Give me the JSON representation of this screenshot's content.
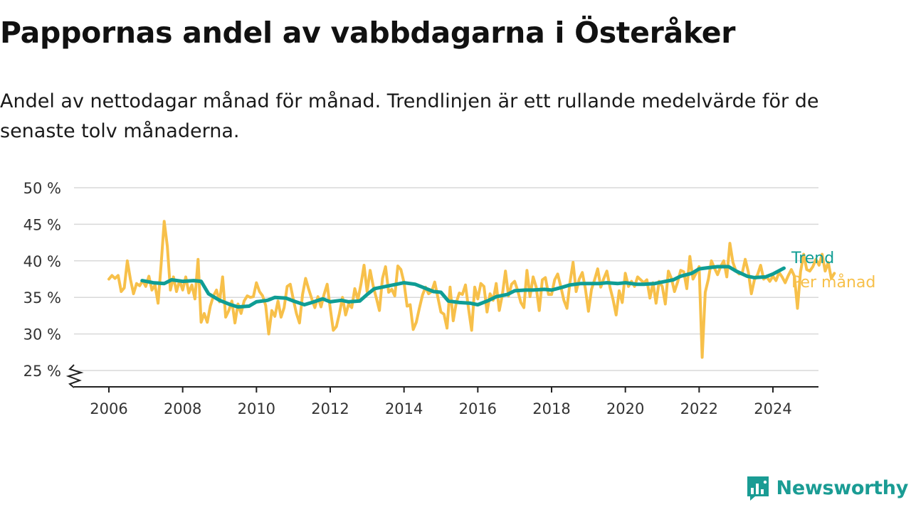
{
  "header": {
    "title": "Pappornas andel av vabbdagarna i Österåker",
    "subtitle": "Andel av nettodagar månad för månad. Trendlinjen är ett rullande medelvärde för de senaste tolv månaderna."
  },
  "legend": {
    "trend": "Trend",
    "monthly": "Per månad"
  },
  "brand": {
    "name": "Newsworthy"
  },
  "colors": {
    "trend": "#0f9d94",
    "monthly": "#f7c04a",
    "grid": "#d9d9d9",
    "axis": "#222222",
    "brand": "#1a9c94"
  },
  "chart_data": {
    "type": "line",
    "title": "Pappornas andel av vabbdagarna i Österåker",
    "xlabel": "",
    "ylabel": "",
    "xlim": [
      2005.1,
      2025.3
    ],
    "ylim": [
      25,
      50
    ],
    "axis_break": "y",
    "grid": true,
    "legend_placement": "right, at line ends",
    "x_ticks": [
      2006,
      2008,
      2010,
      2012,
      2014,
      2016,
      2018,
      2020,
      2022,
      2024
    ],
    "y_ticks": [
      25,
      30,
      35,
      40,
      45,
      50
    ],
    "y_tick_labels": [
      "25 %",
      "30 %",
      "35 %",
      "40 %",
      "45 %",
      "50 %"
    ],
    "series": [
      {
        "name": "Per månad",
        "x_start": 2006.0,
        "step": 0.08333,
        "values": [
          37.5,
          38,
          37.6,
          38,
          35.8,
          36.3,
          40,
          37.5,
          35.5,
          36.9,
          36.6,
          37.3,
          36.5,
          37.9,
          36,
          36.7,
          34.2,
          39.5,
          45.4,
          42,
          36,
          37.8,
          35.8,
          37.3,
          36,
          37.8,
          35.6,
          36.7,
          34.8,
          40.2,
          31.6,
          32.8,
          31.6,
          33.8,
          35.2,
          36,
          34.4,
          37.8,
          32.3,
          33.2,
          34.5,
          31.5,
          34.1,
          32.8,
          34.5,
          35.2,
          35,
          35.1,
          37,
          35.8,
          35.2,
          33.9,
          30,
          33.2,
          32.4,
          34.5,
          32.3,
          33.6,
          36.5,
          36.8,
          34.7,
          32.8,
          31.5,
          35.4,
          37.6,
          36.1,
          34.8,
          33.6,
          35.1,
          33.7,
          35.4,
          36.8,
          33.5,
          30.5,
          31,
          32.8,
          35,
          32.6,
          34.1,
          33.6,
          36.2,
          34.7,
          36.8,
          39.4,
          35.8,
          38.7,
          36.5,
          34.9,
          33.2,
          37.6,
          39.2,
          35.7,
          36.1,
          35.2,
          39.3,
          38.8,
          37,
          33.8,
          34,
          30.6,
          31.6,
          33.5,
          35.3,
          36.4,
          35.5,
          35.8,
          37.1,
          35,
          33,
          32.7,
          30.8,
          36.4,
          31.8,
          34.3,
          35.6,
          35.4,
          36.7,
          33.4,
          30.5,
          36.4,
          34.8,
          36.9,
          36.5,
          33,
          35.5,
          34.6,
          36.9,
          33.2,
          35.4,
          38.6,
          35.2,
          36.8,
          37.2,
          35.9,
          34.3,
          33.6,
          38.7,
          35.1,
          37.8,
          36.4,
          33.2,
          37.4,
          37.7,
          35.4,
          35.4,
          37.4,
          38.2,
          36.5,
          34.6,
          33.5,
          37.1,
          39.8,
          35.8,
          37.5,
          38.4,
          36.2,
          33.1,
          36.1,
          37.4,
          38.9,
          36.4,
          37.6,
          38.6,
          36.4,
          34.7,
          32.6,
          35.9,
          34.3,
          38.3,
          36.5,
          37.2,
          36.5,
          37.8,
          37.4,
          37,
          37.4,
          34.9,
          37,
          34.2,
          37.2,
          36.5,
          34.1,
          38.6,
          37.6,
          35.8,
          37.1,
          38.7,
          38.5,
          36.2,
          40.6,
          37.5,
          38.3,
          39.2,
          26.8,
          35.7,
          37.5,
          40,
          39,
          38.1,
          39.2,
          40,
          37.8,
          42.4,
          39.8,
          38.6,
          38.2,
          38.3,
          40.2,
          38.5,
          35.5,
          37.4,
          38.1,
          39.4,
          37.5,
          37.8,
          37.2,
          37.9,
          37.3,
          38.4,
          37.8,
          37,
          38,
          38.8,
          37.9,
          33.5,
          38.5,
          40.9,
          38.8,
          38.6,
          39.2,
          40.2,
          39.4,
          40.9,
          38.6,
          39.8,
          37.6,
          38.3
        ]
      },
      {
        "name": "Trend",
        "x": [
          2006.9,
          2007.2,
          2007.5,
          2007.7,
          2008.0,
          2008.3,
          2008.5,
          2008.7,
          2009.0,
          2009.3,
          2009.5,
          2009.8,
          2010.0,
          2010.3,
          2010.5,
          2010.8,
          2011.0,
          2011.3,
          2011.5,
          2011.8,
          2012.0,
          2012.3,
          2012.5,
          2012.8,
          2013.0,
          2013.2,
          2013.5,
          2013.8,
          2014.0,
          2014.3,
          2014.5,
          2014.8,
          2015.0,
          2015.2,
          2015.5,
          2015.8,
          2016.0,
          2016.3,
          2016.5,
          2016.8,
          2017.0,
          2017.3,
          2017.5,
          2017.8,
          2018.0,
          2018.3,
          2018.5,
          2018.8,
          2019.0,
          2019.3,
          2019.5,
          2019.8,
          2020.0,
          2020.3,
          2020.5,
          2020.8,
          2021.0,
          2021.3,
          2021.5,
          2021.8,
          2022.0,
          2022.3,
          2022.5,
          2022.8,
          2023.0,
          2023.3,
          2023.5,
          2023.8,
          2024.0,
          2024.3
        ],
        "values": [
          37.3,
          37.0,
          36.9,
          37.4,
          37.2,
          37.3,
          37.2,
          35.5,
          34.6,
          34.0,
          33.7,
          33.8,
          34.4,
          34.6,
          35.0,
          34.9,
          34.5,
          34.0,
          34.3,
          34.8,
          34.4,
          34.6,
          34.4,
          34.5,
          35.4,
          36.2,
          36.5,
          36.8,
          37.0,
          36.8,
          36.4,
          35.8,
          35.7,
          34.5,
          34.3,
          34.2,
          34.0,
          34.6,
          35.1,
          35.4,
          35.9,
          36.0,
          36.0,
          36.1,
          36.0,
          36.4,
          36.7,
          36.9,
          36.9,
          36.9,
          37.0,
          36.9,
          37.0,
          36.8,
          36.8,
          36.9,
          37.1,
          37.4,
          37.9,
          38.3,
          38.9,
          39.1,
          39.2,
          39.2,
          38.6,
          37.9,
          37.7,
          37.8,
          38.2,
          39.0
        ]
      }
    ]
  }
}
